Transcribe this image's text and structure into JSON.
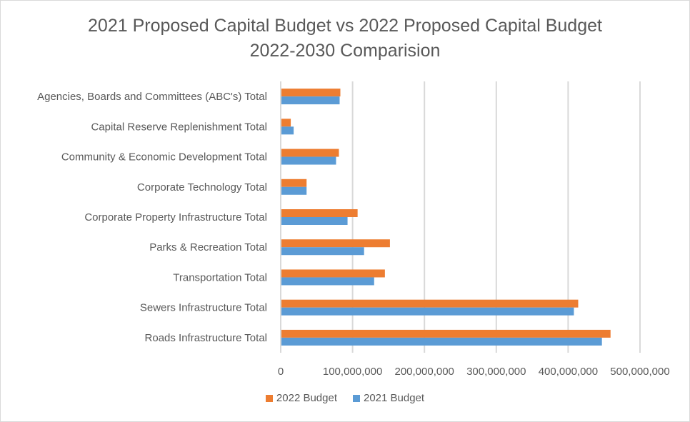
{
  "chart_data": {
    "type": "bar",
    "orientation": "horizontal",
    "title": "2021 Proposed Capital Budget vs 2022 Proposed Capital Budget",
    "subtitle": "2022-2030 Comparision",
    "xlabel": "",
    "ylabel": "",
    "xlim": [
      0,
      500000000
    ],
    "xticks": [
      0,
      100000000,
      200000000,
      300000000,
      400000000,
      500000000
    ],
    "xtick_labels": [
      "0",
      "100,000,000",
      "200,000,000",
      "300,000,000",
      "400,000,000",
      "500,000,000"
    ],
    "grid": "vertical",
    "legend_position": "bottom",
    "categories": [
      "Agencies, Boards and Committees (ABC's) Total",
      "Capital Reserve Replenishment Total",
      "Community & Economic Development Total",
      "Corporate Technology Total",
      "Corporate Property Infrastructure Total",
      "Parks & Recreation Total",
      "Transportation Total",
      "Sewers Infrastructure Total",
      "Roads Infrastructure Total"
    ],
    "series": [
      {
        "name": "2022 Budget",
        "color": "#ED7D31",
        "values": [
          83000000,
          14000000,
          81000000,
          36000000,
          107000000,
          152000000,
          145000000,
          414000000,
          459000000
        ]
      },
      {
        "name": "2021 Budget",
        "color": "#5B9BD5",
        "values": [
          82000000,
          18000000,
          77000000,
          36000000,
          93000000,
          116000000,
          130000000,
          408000000,
          447000000
        ]
      }
    ],
    "gridline_color": "#d9d9d9",
    "text_color": "#595959"
  }
}
